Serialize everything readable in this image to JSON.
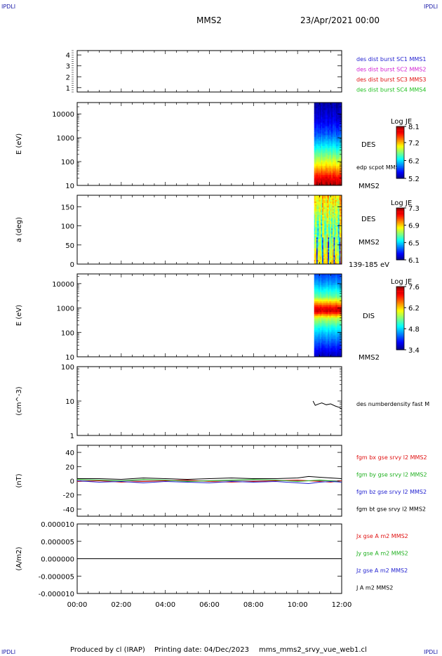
{
  "corners": {
    "tl": "IPDLI",
    "tr": "IPDLI",
    "bl": "IPDLI",
    "br": "IPDLI"
  },
  "header": {
    "spacecraft": "MMS2",
    "date": "23/Apr/2021 00:00"
  },
  "footer": {
    "produced_by": "Produced by cl (IRAP)",
    "printing_date": "Printing date: 04/Dec/2023",
    "filename": "mms_mms2_srvy_vue_web1.cl"
  },
  "chart_data": [
    {
      "type": "heatmap",
      "id": "burst-availability",
      "ylim": [
        0.6,
        4.4
      ],
      "yticks": [
        "1",
        "2",
        "3",
        "4"
      ],
      "legend": [
        {
          "text": "des dist burst SC1 MMS1",
          "color": "#1f1fd0"
        },
        {
          "text": "des dist burst SC2 MMS2",
          "color": "#d21fd2"
        },
        {
          "text": "des dist burst SC3 MMS3",
          "color": "#e01010"
        },
        {
          "text": "des dist burst SC4 MMS4",
          "color": "#20c020"
        }
      ]
    },
    {
      "type": "heatmap",
      "id": "des-energy",
      "ylabel": "E (eV)",
      "yscale": "log",
      "ylim": [
        10,
        30000
      ],
      "yticks": [
        "10",
        "100",
        "1000",
        "10000"
      ],
      "labels": [
        "DES",
        "edp scpot MMS2",
        "MMS2"
      ],
      "data_start_hour": 10.75,
      "colorbar": {
        "title": "Log JE",
        "min": 5.2,
        "max": 8.1,
        "ticks": [
          "5.2",
          "6.2",
          "7.2",
          "8.1"
        ]
      },
      "profile": [
        [
          10,
          8.1
        ],
        [
          20,
          7.8
        ],
        [
          40,
          7.4
        ],
        [
          80,
          7.0
        ],
        [
          200,
          6.6
        ],
        [
          500,
          6.2
        ],
        [
          1500,
          5.8
        ],
        [
          5000,
          5.5
        ],
        [
          30000,
          5.3
        ]
      ]
    },
    {
      "type": "heatmap",
      "id": "des-pitch",
      "ylabel": "a (deg)",
      "ylim": [
        0,
        180
      ],
      "yticks": [
        "0",
        "50",
        "100",
        "150"
      ],
      "labels": [
        "DES",
        "MMS2",
        "139-185 eV"
      ],
      "data_start_hour": 10.75,
      "colorbar": {
        "title": "Log JE",
        "min": 6.1,
        "max": 7.3,
        "ticks": [
          "6.1",
          "6.5",
          "6.9",
          "7.3"
        ]
      }
    },
    {
      "type": "heatmap",
      "id": "dis-energy",
      "ylabel": "E (eV)",
      "yscale": "log",
      "ylim": [
        10,
        25000
      ],
      "yticks": [
        "10",
        "100",
        "1000",
        "10000"
      ],
      "labels": [
        "DIS",
        "MMS2"
      ],
      "data_start_hour": 10.75,
      "colorbar": {
        "title": "Log JE",
        "min": 3.4,
        "max": 7.6,
        "ticks": [
          "3.4",
          "4.8",
          "6.2",
          "7.6"
        ]
      },
      "profile": [
        [
          10,
          3.6
        ],
        [
          50,
          4.4
        ],
        [
          150,
          5.0
        ],
        [
          400,
          5.8
        ],
        [
          800,
          7.5
        ],
        [
          1200,
          6.9
        ],
        [
          3000,
          5.4
        ],
        [
          10000,
          4.6
        ],
        [
          25000,
          4.2
        ]
      ]
    },
    {
      "type": "line",
      "id": "density",
      "ylabel": "(cm^-3)",
      "yscale": "log",
      "ylim": [
        1,
        100
      ],
      "yticks": [
        "1",
        "10",
        "100"
      ],
      "series": [
        {
          "name": "des numberdensity fast M",
          "color": "#000000",
          "x": [
            10.7,
            10.8,
            10.95,
            11.1,
            11.3,
            11.5,
            11.7,
            11.9,
            12.0
          ],
          "y": [
            10,
            7.5,
            8.2,
            8.8,
            7.8,
            8.3,
            7.2,
            6.5,
            6.0
          ]
        }
      ]
    },
    {
      "type": "line",
      "id": "magnetic-field",
      "ylabel": "(nT)",
      "ylim": [
        -50,
        50
      ],
      "yticks": [
        "-40",
        "-20",
        "0",
        "20",
        "40"
      ],
      "series": [
        {
          "name": "fgm bx gse srvy l2 MMS2",
          "color": "#e01010",
          "x": [
            0,
            1,
            2,
            3,
            4,
            5,
            6,
            7,
            8,
            9,
            10,
            10.5,
            11,
            11.5,
            12
          ],
          "y": [
            -1,
            0,
            -2,
            -1,
            0,
            1,
            -1,
            -2,
            -1,
            0,
            1,
            0,
            -1,
            -2,
            0
          ]
        },
        {
          "name": "fgm by gse srvy l2 MMS2",
          "color": "#20b020",
          "x": [
            0,
            1,
            2,
            3,
            4,
            5,
            6,
            7,
            8,
            9,
            10,
            10.5,
            11,
            11.5,
            12
          ],
          "y": [
            2,
            1,
            0,
            2,
            1,
            -1,
            0,
            1,
            2,
            1,
            -1,
            0,
            1,
            0,
            -2
          ]
        },
        {
          "name": "fgm bz gse srvy l2 MMS2",
          "color": "#1f1fd0",
          "x": [
            0,
            1,
            2,
            3,
            4,
            5,
            6,
            7,
            8,
            9,
            10,
            10.5,
            11,
            11.5,
            12
          ],
          "y": [
            0,
            -2,
            -1,
            -3,
            -1,
            -2,
            -3,
            -1,
            -2,
            -1,
            -3,
            -4,
            -2,
            -1,
            -2
          ]
        },
        {
          "name": "fgm bt gse srvy l2 MMS2",
          "color": "#000000",
          "x": [
            0,
            1,
            2,
            3,
            4,
            5,
            6,
            7,
            8,
            9,
            10,
            10.5,
            11,
            11.5,
            12
          ],
          "y": [
            3,
            3,
            2,
            4,
            3,
            2,
            3,
            4,
            3,
            3,
            4,
            6,
            5,
            4,
            3
          ]
        }
      ]
    },
    {
      "type": "line",
      "id": "current-density",
      "ylabel": "(A/m2)",
      "ylim": [
        -1e-05,
        1e-05
      ],
      "yticks": [
        "-0.000010",
        "-0.000005",
        "0.000000",
        "0.000005",
        "0.000010"
      ],
      "series": [
        {
          "name": "Jx gse A m2 MMS2",
          "color": "#e01010",
          "x": [
            0,
            12
          ],
          "y": [
            0,
            0
          ]
        },
        {
          "name": "Jy gse A m2 MMS2",
          "color": "#20b020",
          "x": [
            0,
            12
          ],
          "y": [
            0,
            0
          ]
        },
        {
          "name": "Jz gse A m2 MMS2",
          "color": "#1f1fd0",
          "x": [
            0,
            12
          ],
          "y": [
            0,
            0
          ]
        },
        {
          "name": "J A m2 MMS2",
          "color": "#000000",
          "x": [
            0,
            12
          ],
          "y": [
            0,
            0
          ]
        }
      ]
    }
  ],
  "xaxis": {
    "range_hours": [
      0,
      12
    ],
    "ticks": [
      "00:00",
      "02:00",
      "04:00",
      "06:00",
      "08:00",
      "10:00",
      "12:00"
    ]
  }
}
